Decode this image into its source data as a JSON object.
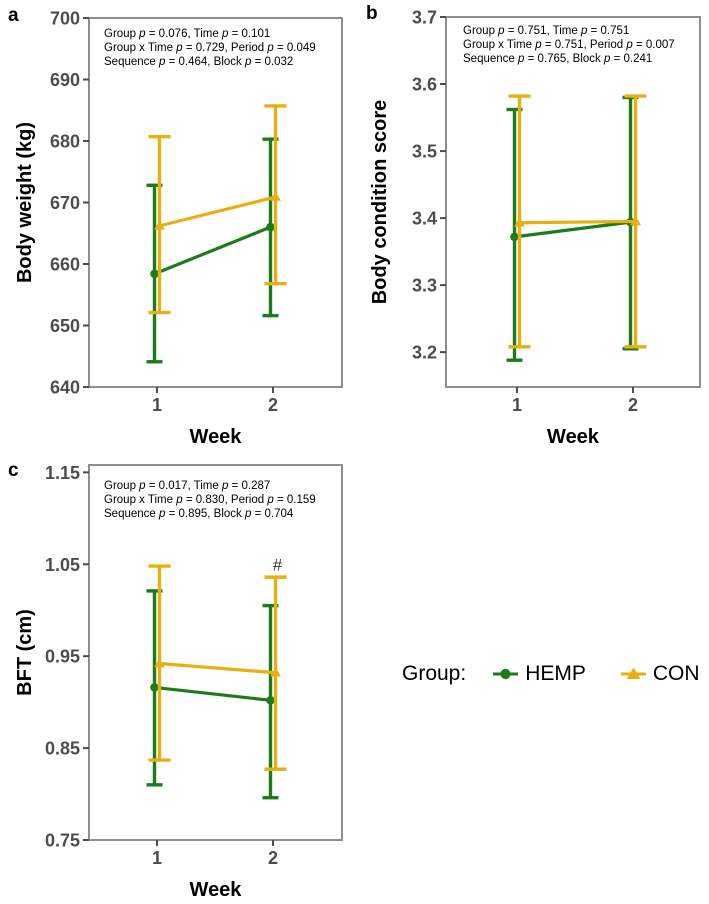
{
  "colors": {
    "hemp": "#1c7c1c",
    "con": "#e7af10",
    "tick_label": "#4d4d4d",
    "panel_border": "#8e8e8e",
    "axis_title": "#000000",
    "annotation_text": "#000000"
  },
  "legend": {
    "title": "Group:",
    "entries": [
      {
        "label": "HEMP",
        "color": "#1c7c1c",
        "marker": "circle"
      },
      {
        "label": "CON",
        "color": "#e7af10",
        "marker": "triangle"
      }
    ]
  },
  "chart_data": [
    {
      "type": "line",
      "panel_label": "a",
      "xlabel": "Week",
      "ylabel": "Body weight (kg)",
      "categories": [
        "1",
        "2"
      ],
      "ylim": [
        640,
        700
      ],
      "yticks": [
        {
          "value": 640,
          "label": "640"
        },
        {
          "value": 650,
          "label": "650"
        },
        {
          "value": 660,
          "label": "660"
        },
        {
          "value": 670,
          "label": "670"
        },
        {
          "value": 680,
          "label": "680"
        },
        {
          "value": 690,
          "label": "690"
        },
        {
          "value": 700,
          "label": "700"
        }
      ],
      "annotation_lines": [
        "Group p = 0.076, Time p = 0.101",
        "Group x Time p = 0.729, Period p = 0.049",
        "Sequence p = 0.464, Block p = 0.032"
      ],
      "series": [
        {
          "name": "HEMP",
          "color": "#1c7c1c",
          "marker": "circle",
          "values": [
            658.4,
            666.0
          ],
          "ci_low": [
            644.1,
            651.6
          ],
          "ci_high": [
            672.8,
            680.3
          ]
        },
        {
          "name": "CON",
          "color": "#e7af10",
          "marker": "triangle",
          "values": [
            666.2,
            670.9
          ],
          "ci_low": [
            652.1,
            656.8
          ],
          "ci_high": [
            680.7,
            685.7
          ]
        }
      ]
    },
    {
      "type": "line",
      "panel_label": "b",
      "xlabel": "Week",
      "ylabel": "Body condition score",
      "categories": [
        "1",
        "2"
      ],
      "ylim": [
        3.148,
        3.7
      ],
      "yticks": [
        {
          "value": 3.2,
          "label": "3.2"
        },
        {
          "value": 3.3,
          "label": "3.3"
        },
        {
          "value": 3.4,
          "label": "3.4"
        },
        {
          "value": 3.5,
          "label": "3.5"
        },
        {
          "value": 3.6,
          "label": "3.6"
        },
        {
          "value": 3.7,
          "label": "3.7"
        }
      ],
      "annotation_lines": [
        "Group p = 0.751, Time p = 0.751",
        "Group x Time p = 0.751, Period p = 0.007",
        "Sequence p = 0.765, Block p = 0.241"
      ],
      "series": [
        {
          "name": "HEMP",
          "color": "#1c7c1c",
          "marker": "circle",
          "values": [
            3.372,
            3.394
          ],
          "ci_low": [
            3.188,
            3.205
          ],
          "ci_high": [
            3.562,
            3.58
          ]
        },
        {
          "name": "CON",
          "color": "#e7af10",
          "marker": "triangle",
          "values": [
            3.393,
            3.395
          ],
          "ci_low": [
            3.208,
            3.208
          ],
          "ci_high": [
            3.582,
            3.582
          ]
        }
      ]
    },
    {
      "type": "line",
      "panel_label": "c",
      "xlabel": "Week",
      "ylabel": "BFT (cm)",
      "categories": [
        "1",
        "2"
      ],
      "ylim": [
        0.75,
        1.158
      ],
      "yticks": [
        {
          "value": 0.75,
          "label": "0.75"
        },
        {
          "value": 0.85,
          "label": "0.85"
        },
        {
          "value": 0.95,
          "label": "0.95"
        },
        {
          "value": 1.05,
          "label": "1.05"
        },
        {
          "value": 1.15,
          "label": "1.15"
        }
      ],
      "annotation_lines": [
        "Group p = 0.017, Time p = 0.287",
        "Group x Time p = 0.830, Period p = 0.159",
        "Sequence p = 0.895, Block p = 0.704"
      ],
      "point_annotation": {
        "text": "#",
        "week": "2",
        "value": 1.043
      },
      "series": [
        {
          "name": "HEMP",
          "color": "#1c7c1c",
          "marker": "circle",
          "values": [
            0.916,
            0.902
          ],
          "ci_low": [
            0.81,
            0.796
          ],
          "ci_high": [
            1.021,
            1.005
          ]
        },
        {
          "name": "CON",
          "color": "#e7af10",
          "marker": "triangle",
          "values": [
            0.942,
            0.932
          ],
          "ci_low": [
            0.837,
            0.827
          ],
          "ci_high": [
            1.048,
            1.036
          ]
        }
      ]
    }
  ]
}
